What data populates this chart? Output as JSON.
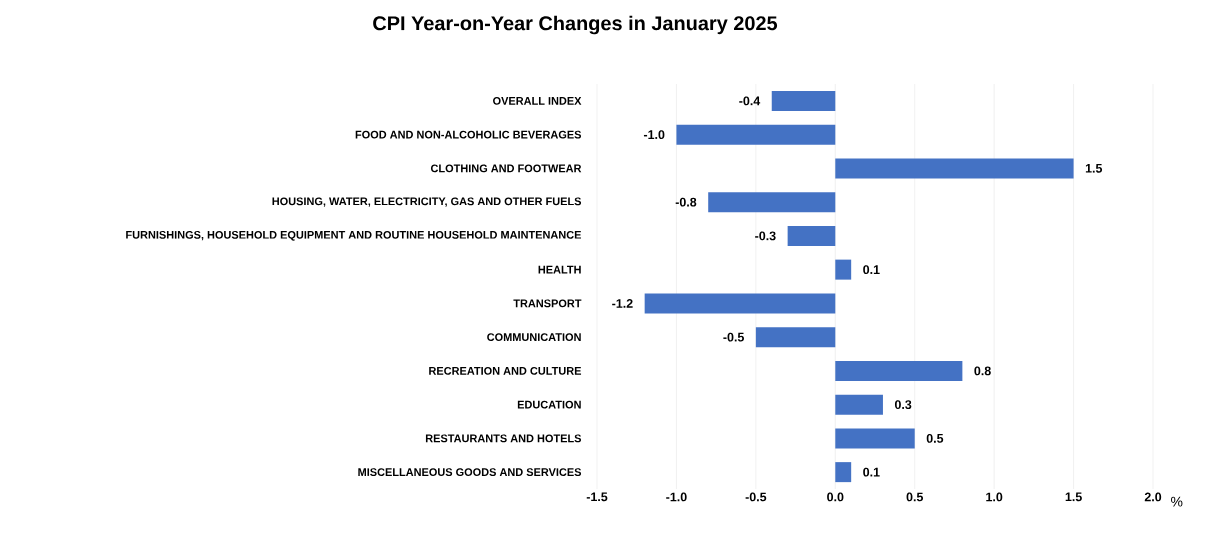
{
  "chart_data": {
    "type": "bar",
    "orientation": "horizontal",
    "title": "CPI Year-on-Year Changes in January 2025",
    "categories": [
      "OVERALL INDEX",
      "FOOD AND NON-ALCOHOLIC BEVERAGES",
      "CLOTHING AND FOOTWEAR",
      "HOUSING, WATER, ELECTRICITY, GAS AND OTHER FUELS",
      "FURNISHINGS, HOUSEHOLD EQUIPMENT AND ROUTINE HOUSEHOLD MAINTENANCE",
      "HEALTH",
      "TRANSPORT",
      "COMMUNICATION",
      "RECREATION AND CULTURE",
      "EDUCATION",
      "RESTAURANTS AND HOTELS",
      "MISCELLANEOUS GOODS AND SERVICES"
    ],
    "values": [
      -0.4,
      -1.0,
      1.5,
      -0.8,
      -0.3,
      0.1,
      -1.2,
      -0.5,
      0.8,
      0.3,
      0.5,
      0.1
    ],
    "value_labels": [
      "-0.4",
      "-1.0",
      "1.5",
      "-0.8",
      "-0.3",
      "0.1",
      "-1.2",
      "-0.5",
      "0.8",
      "0.3",
      "0.5",
      "0.1"
    ],
    "color": "#4472c4",
    "xlabel": "%",
    "grid": "x",
    "xlim": [
      -1.5,
      2.0
    ],
    "xticks": [
      {
        "value": -1.5,
        "label": "-1.5"
      },
      {
        "value": -1.0,
        "label": "-1.0"
      },
      {
        "value": -0.5,
        "label": "-0.5"
      },
      {
        "value": 0.0,
        "label": "0.0"
      },
      {
        "value": 0.5,
        "label": "0.5"
      },
      {
        "value": 1.0,
        "label": "1.0"
      },
      {
        "value": 1.5,
        "label": "1.5"
      },
      {
        "value": 2.0,
        "label": "2.0"
      }
    ]
  }
}
